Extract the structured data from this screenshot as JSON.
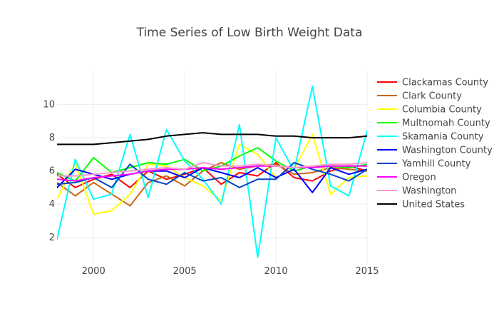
{
  "chart_data": {
    "type": "line",
    "title": "Time Series of Low Birth Weight Data",
    "xlabel": "",
    "ylabel": "",
    "xlim": [
      1998,
      2015
    ],
    "ylim": [
      0.4,
      12
    ],
    "x_ticks": [
      2000,
      2005,
      2010,
      2015
    ],
    "y_ticks": [
      2,
      4,
      6,
      8,
      10
    ],
    "grid": true,
    "legend_position": "right",
    "x": [
      1998,
      1999,
      2000,
      2001,
      2002,
      2003,
      2004,
      2005,
      2006,
      2007,
      2008,
      2009,
      2010,
      2011,
      2012,
      2013,
      2014,
      2015
    ],
    "series": [
      {
        "name": "Clackamas County",
        "color": "#ff0000",
        "values": [
          5.8,
          5.0,
          5.5,
          5.8,
          5.0,
          6.0,
          5.5,
          5.8,
          6.2,
          5.2,
          5.9,
          5.7,
          6.5,
          5.6,
          5.4,
          6.0,
          6.3,
          6.0
        ]
      },
      {
        "name": "Clark County",
        "color": "#cc6611",
        "values": [
          5.3,
          4.5,
          5.3,
          4.6,
          3.9,
          5.3,
          5.7,
          5.1,
          6.0,
          6.5,
          6.1,
          6.3,
          6.4,
          5.8,
          5.9,
          6.2,
          6.1,
          6.0
        ]
      },
      {
        "name": "Columbia County",
        "color": "#ffff00",
        "values": [
          4.3,
          6.5,
          3.4,
          3.6,
          4.6,
          6.4,
          6.3,
          5.6,
          5.1,
          4.2,
          7.6,
          7.0,
          5.6,
          6.1,
          8.2,
          4.6,
          5.6,
          5.7
        ]
      },
      {
        "name": "Multnomah County",
        "color": "#00ff00",
        "values": [
          5.9,
          5.4,
          6.8,
          5.9,
          6.2,
          6.5,
          6.4,
          6.7,
          6.0,
          6.3,
          6.9,
          7.4,
          6.6,
          6.0,
          6.3,
          6.3,
          6.2,
          6.4
        ]
      },
      {
        "name": "Skamania County",
        "color": "#00ffff",
        "values": [
          1.9,
          6.7,
          4.3,
          4.6,
          8.2,
          4.4,
          8.5,
          6.6,
          5.5,
          4.0,
          8.8,
          0.8,
          8.0,
          6.0,
          11.1,
          5.1,
          4.5,
          8.4
        ]
      },
      {
        "name": "Washington County",
        "color": "#0000ff",
        "values": [
          5.0,
          6.1,
          5.8,
          5.5,
          5.8,
          6.0,
          6.0,
          5.6,
          6.2,
          5.9,
          5.6,
          6.2,
          5.6,
          6.1,
          4.7,
          6.2,
          5.8,
          6.1
        ]
      },
      {
        "name": "Yamhill County",
        "color": "#0044cc",
        "values": [
          5.2,
          5.3,
          5.6,
          5.0,
          6.4,
          5.5,
          5.2,
          5.9,
          5.4,
          5.6,
          5.0,
          5.5,
          5.5,
          6.5,
          6.1,
          5.8,
          5.4,
          6.1
        ]
      },
      {
        "name": "Oregon",
        "color": "#ff00ff",
        "values": [
          5.5,
          5.4,
          5.6,
          5.7,
          5.8,
          6.0,
          6.1,
          6.1,
          6.2,
          6.1,
          6.2,
          6.3,
          6.3,
          6.2,
          6.2,
          6.3,
          6.3,
          6.3
        ]
      },
      {
        "name": "Washington",
        "color": "#ff99cc",
        "values": [
          5.7,
          5.7,
          5.8,
          5.9,
          6.0,
          6.1,
          6.2,
          6.1,
          6.5,
          6.3,
          6.3,
          6.4,
          6.3,
          6.2,
          6.3,
          6.4,
          6.4,
          6.5
        ]
      },
      {
        "name": "United States",
        "color": "#000000",
        "values": [
          7.6,
          7.6,
          7.6,
          7.7,
          7.8,
          7.9,
          8.1,
          8.2,
          8.3,
          8.2,
          8.2,
          8.2,
          8.1,
          8.1,
          8.0,
          8.0,
          8.0,
          8.1
        ]
      }
    ]
  }
}
